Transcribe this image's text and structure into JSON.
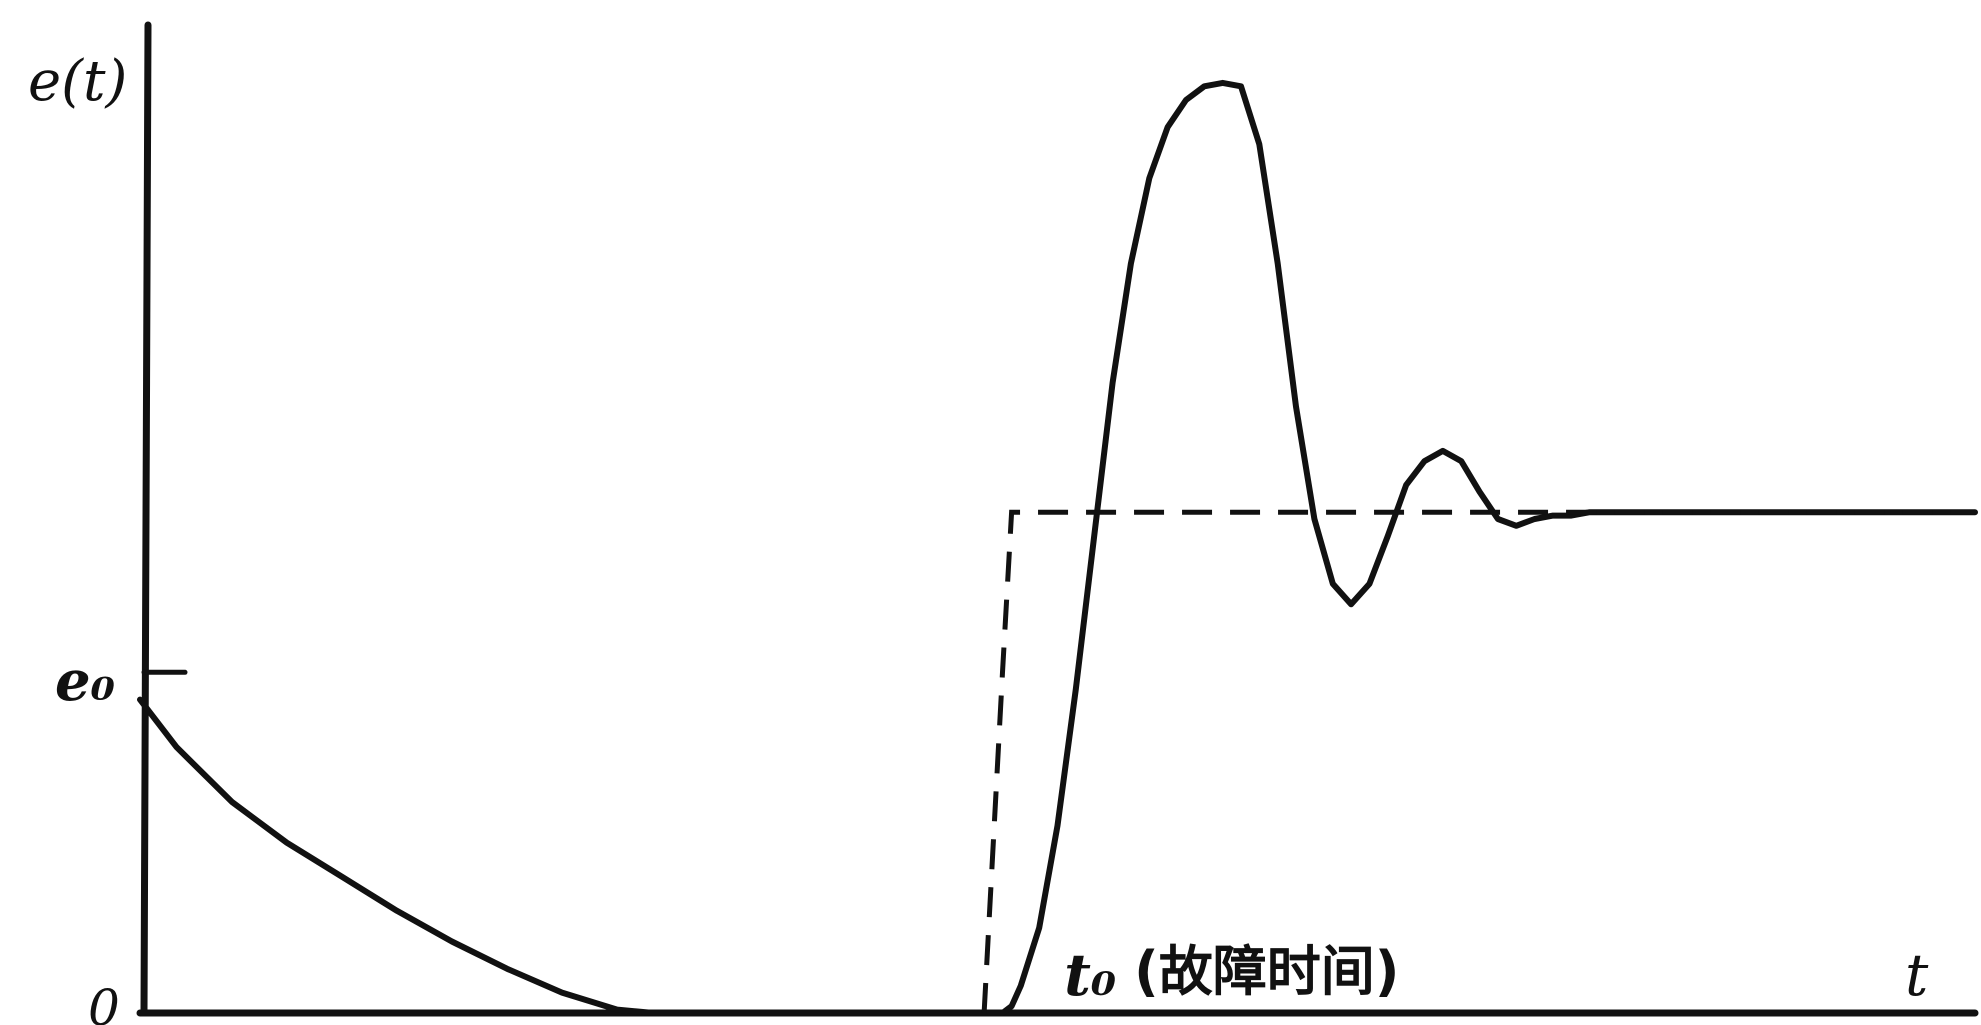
{
  "chart_data": {
    "type": "line",
    "ylabel": "e(t)",
    "xlabel": "t",
    "ytick_label": "e₀",
    "origin_label": "0",
    "event_label": "t₀",
    "event_annotation": "(故障时间)",
    "xlim": [
      0,
      10
    ],
    "ylim": [
      0,
      2.9
    ],
    "e0_value": 1.0,
    "t0_value": 4.6,
    "series": [
      {
        "style": "solid",
        "x": [
          0.0,
          0.2,
          0.5,
          0.8,
          1.1,
          1.4,
          1.7,
          2.0,
          2.3,
          2.6,
          2.8,
          3.2,
          3.6,
          4.0,
          4.4,
          4.6,
          4.7,
          4.75,
          4.8,
          4.9,
          5.0,
          5.1,
          5.2,
          5.3,
          5.4,
          5.5,
          5.6,
          5.7,
          5.8,
          5.9,
          6.0,
          6.1,
          6.2,
          6.3,
          6.4,
          6.5,
          6.6,
          6.7,
          6.8,
          6.9,
          7.0,
          7.1,
          7.2,
          7.3,
          7.4,
          7.5,
          7.6,
          7.7,
          7.8,
          7.9,
          8.0,
          8.2,
          8.5,
          9.0,
          9.5,
          10.0
        ],
        "y": [
          0.92,
          0.78,
          0.62,
          0.5,
          0.4,
          0.3,
          0.21,
          0.13,
          0.06,
          0.01,
          0.0,
          0.0,
          0.0,
          0.0,
          0.0,
          0.0,
          0.0,
          0.02,
          0.08,
          0.25,
          0.55,
          0.95,
          1.4,
          1.85,
          2.2,
          2.45,
          2.6,
          2.68,
          2.72,
          2.73,
          2.72,
          2.55,
          2.2,
          1.78,
          1.45,
          1.26,
          1.2,
          1.26,
          1.4,
          1.55,
          1.62,
          1.65,
          1.62,
          1.53,
          1.45,
          1.43,
          1.45,
          1.46,
          1.46,
          1.47,
          1.47,
          1.47,
          1.47,
          1.47,
          1.47,
          1.47
        ]
      },
      {
        "style": "dashed",
        "x": [
          4.6,
          4.65,
          4.7,
          4.75,
          10.0
        ],
        "y": [
          0.0,
          0.5,
          1.0,
          1.47,
          1.47
        ]
      }
    ]
  }
}
